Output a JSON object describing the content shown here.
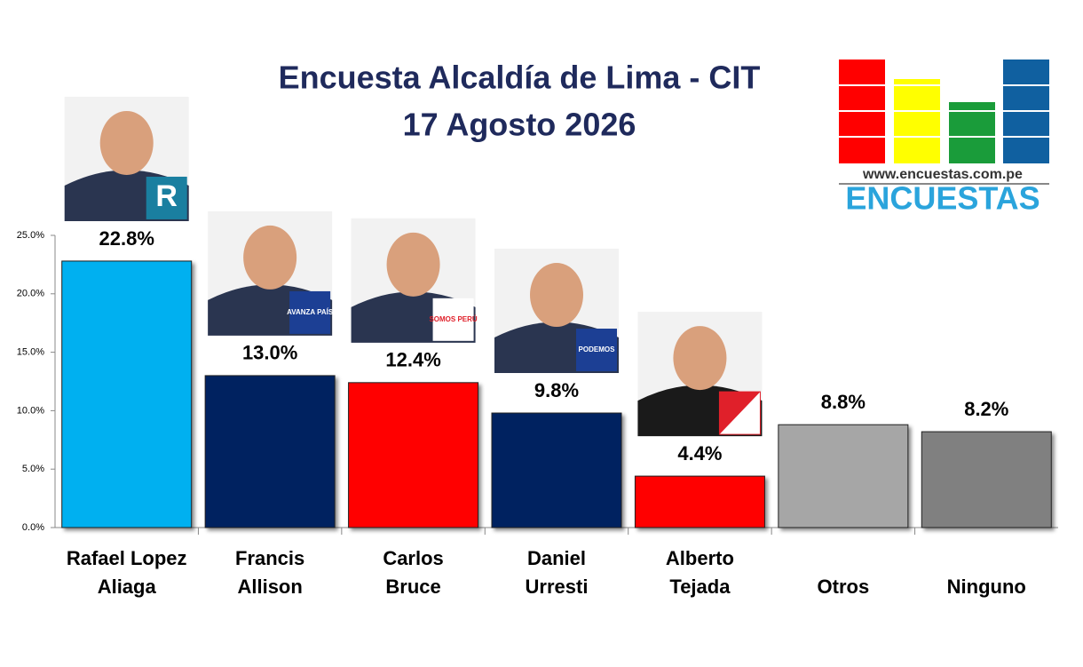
{
  "chart_data": {
    "type": "bar",
    "title": "Encuesta Alcaldía de Lima - CIT",
    "subtitle": "17 Agosto 2026",
    "categories": [
      "Rafael Lopez\nAliaga",
      "Francis\nAllison",
      "Carlos\nBruce",
      "Daniel\nUrresti",
      "Alberto\nTejada",
      "Otros",
      "Ninguno"
    ],
    "values": [
      22.8,
      13.0,
      12.4,
      9.8,
      4.4,
      8.8,
      8.2
    ],
    "value_labels": [
      "22.8%",
      "13.0%",
      "12.4%",
      "9.8%",
      "4.4%",
      "8.8%",
      "8.2%"
    ],
    "colors": [
      "#00b0f0",
      "#002060",
      "#ff0000",
      "#002060",
      "#ff0000",
      "#a6a6a6",
      "#808080"
    ],
    "ylim": [
      0,
      25
    ],
    "yticks": [
      {
        "value": 0,
        "label": "0.0%"
      },
      {
        "value": 5,
        "label": "5.0%"
      },
      {
        "value": 10,
        "label": "10.0%"
      },
      {
        "value": 15,
        "label": "15.0%"
      },
      {
        "value": 20,
        "label": "20.0%"
      },
      {
        "value": 25,
        "label": "25.0%"
      }
    ],
    "party_logos": [
      "R",
      "AVANZA PAÍS",
      "SOMOS PERÚ",
      "PODEMOS"
    ],
    "brand_url": "www.encuestas.com.pe",
    "brand_name": "ENCUESTAS"
  }
}
